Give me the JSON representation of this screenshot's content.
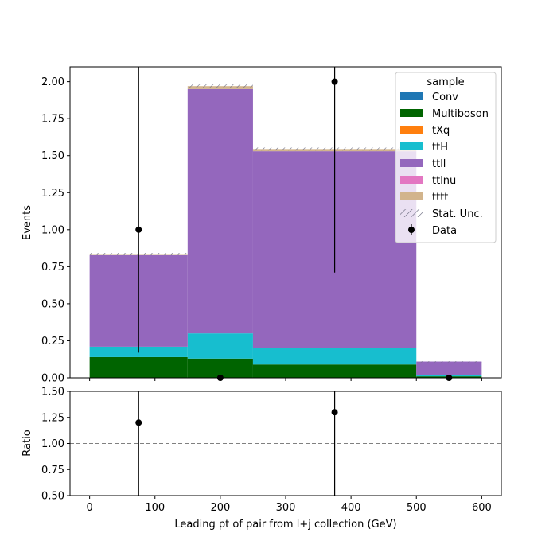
{
  "chart_data": [
    {
      "type": "bar",
      "stacked": true,
      "xlabel": "",
      "ylabel": "Events",
      "xlim": [
        -30,
        630
      ],
      "ylim": [
        0,
        2.1
      ],
      "bin_edges": [
        0,
        150,
        250,
        500,
        600
      ],
      "x_ticks": [
        "0",
        "100",
        "200",
        "300",
        "400",
        "500",
        "600"
      ],
      "y_ticks": [
        "0.00",
        "0.25",
        "0.50",
        "0.75",
        "1.00",
        "1.25",
        "1.50",
        "1.75",
        "2.00"
      ],
      "series": [
        {
          "name": "Conv",
          "color": "#1f77b4",
          "values": [
            0,
            0,
            0,
            0
          ]
        },
        {
          "name": "Multiboson",
          "color": "#006400",
          "values": [
            0.14,
            0.13,
            0.09,
            0.01
          ]
        },
        {
          "name": "tXq",
          "color": "#ff7f0e",
          "values": [
            0,
            0,
            0,
            0
          ]
        },
        {
          "name": "ttH",
          "color": "#17becf",
          "values": [
            0.07,
            0.17,
            0.11,
            0.01
          ]
        },
        {
          "name": "ttll",
          "color": "#9467bd",
          "values": [
            0.62,
            1.65,
            1.33,
            0.09
          ]
        },
        {
          "name": "ttlnu",
          "color": "#e377c2",
          "values": [
            0,
            0,
            0,
            0
          ]
        },
        {
          "name": "tttt",
          "color": "#d2b48c",
          "values": [
            0.005,
            0.02,
            0.015,
            0
          ]
        }
      ],
      "stat_unc": {
        "name": "Stat. Unc.",
        "half_width": [
          0.008,
          0.012,
          0.01,
          0.002
        ]
      },
      "data": {
        "name": "Data",
        "x": [
          75,
          200,
          375,
          550
        ],
        "y": [
          1,
          0,
          2,
          0
        ],
        "yerr_low": [
          0.83,
          0,
          1.29,
          0
        ],
        "yerr_high": [
          2.3,
          0,
          2.64,
          0
        ]
      },
      "legend": {
        "title": "sample",
        "position": "top-right"
      }
    },
    {
      "type": "scatter",
      "xlabel": "Leading pt of pair from l+j collection (GeV)",
      "ylabel": "Ratio",
      "xlim": [
        -30,
        630
      ],
      "ylim": [
        0.5,
        1.5
      ],
      "x_ticks": [
        "0",
        "100",
        "200",
        "300",
        "400",
        "500",
        "600"
      ],
      "y_ticks": [
        "0.50",
        "0.75",
        "1.00",
        "1.25",
        "1.50"
      ],
      "reference_line": 1.0,
      "points": {
        "x": [
          75,
          375
        ],
        "y": [
          1.2,
          1.3
        ]
      },
      "error_bars_x": [
        75,
        375
      ]
    }
  ]
}
